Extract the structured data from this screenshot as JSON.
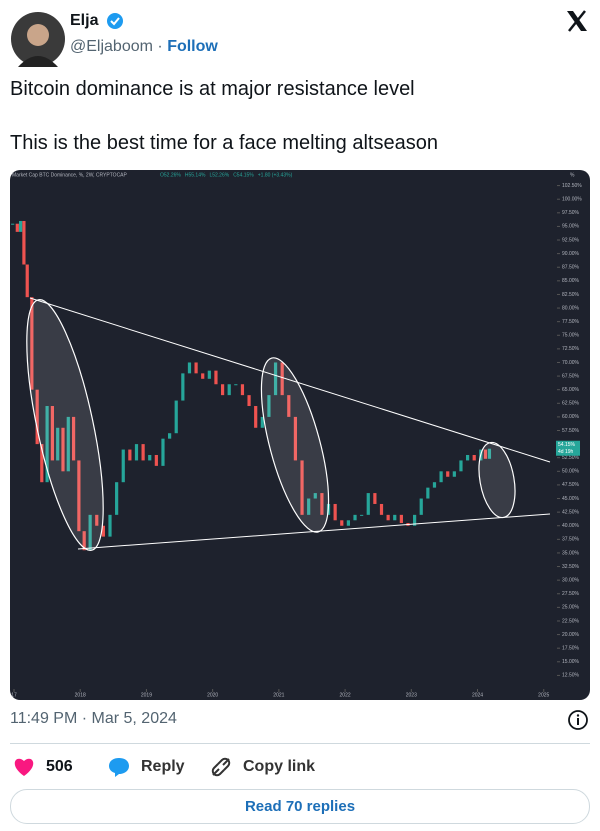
{
  "author": {
    "name": "Elja",
    "handle": "@Eljaboom",
    "separator": "·",
    "follow": "Follow"
  },
  "text": [
    "Bitcoin dominance is at major resistance level",
    "This is the best time for a face melting altseason"
  ],
  "chart_data": {
    "type": "candlestick",
    "title": "Market Cap BTC Dominance, %, 2W, CRYPTOCAP",
    "ohlc": [
      "O52.26%",
      "H55.14%",
      "L52.26%",
      "C54.15%",
      "+1.80 (+3.43%)"
    ],
    "y_unit": "%",
    "price_label": "54.15%",
    "countdown": "4d 19h",
    "up_color": "#26a69a",
    "down_color": "#ef5350",
    "x": [
      2016.98,
      2017.05,
      2017.1,
      2017.15,
      2017.2,
      2017.27,
      2017.35,
      2017.42,
      2017.5,
      2017.58,
      2017.66,
      2017.74,
      2017.82,
      2017.9,
      2017.98,
      2018.06,
      2018.15,
      2018.25,
      2018.35,
      2018.45,
      2018.55,
      2018.65,
      2018.75,
      2018.85,
      2018.95,
      2019.05,
      2019.15,
      2019.25,
      2019.35,
      2019.45,
      2019.55,
      2019.65,
      2019.75,
      2019.85,
      2019.95,
      2020.05,
      2020.15,
      2020.25,
      2020.35,
      2020.45,
      2020.55,
      2020.65,
      2020.75,
      2020.85,
      2020.95,
      2021.05,
      2021.15,
      2021.25,
      2021.35,
      2021.45,
      2021.55,
      2021.65,
      2021.75,
      2021.85,
      2021.95,
      2022.05,
      2022.15,
      2022.25,
      2022.35,
      2022.45,
      2022.55,
      2022.65,
      2022.75,
      2022.85,
      2022.95,
      2023.05,
      2023.15,
      2023.25,
      2023.35,
      2023.45,
      2023.55,
      2023.65,
      2023.75,
      2023.85,
      2023.95,
      2024.05,
      2024.12,
      2024.18
    ],
    "values": [
      95.5,
      94,
      96,
      88,
      82,
      65,
      55,
      48,
      62,
      52,
      58,
      50,
      60,
      52,
      39,
      35.5,
      42,
      40,
      38,
      42,
      48,
      54,
      52,
      55,
      52,
      53,
      51,
      56,
      57,
      63,
      68,
      70,
      68,
      67,
      68.5,
      66,
      64,
      66,
      66,
      64,
      62,
      58,
      60,
      64,
      70,
      64,
      60,
      52,
      42,
      45,
      46,
      42,
      44,
      41,
      40,
      41,
      42,
      42,
      46,
      44,
      42,
      41,
      42,
      40.5,
      40,
      42,
      45,
      47,
      48,
      50,
      49,
      50,
      52,
      53,
      52,
      54,
      52.3,
      54.15
    ],
    "xlim": [
      2016.97,
      2025.17
    ],
    "xticks": [
      {
        "value": 2017,
        "label": "17"
      },
      2018,
      2019,
      2020,
      2021,
      2022,
      2023,
      2024,
      2025
    ],
    "ylim": [
      10,
      105
    ],
    "yticks": [
      {
        "value": 12.5,
        "label": "12.50%"
      },
      {
        "value": 15,
        "label": "15.00%"
      },
      {
        "value": 17.5,
        "label": "17.50%"
      },
      {
        "value": 20,
        "label": "20.00%"
      },
      {
        "value": 22.5,
        "label": "22.50%"
      },
      {
        "value": 25,
        "label": "25.00%"
      },
      {
        "value": 27.5,
        "label": "27.50%"
      },
      {
        "value": 30,
        "label": "30.00%"
      },
      {
        "value": 32.5,
        "label": "32.50%"
      },
      {
        "value": 35,
        "label": "35.00%"
      },
      {
        "value": 37.5,
        "label": "37.50%"
      },
      {
        "value": 40,
        "label": "40.00%"
      },
      {
        "value": 42.5,
        "label": "42.50%"
      },
      {
        "value": 45,
        "label": "45.00%"
      },
      {
        "value": 47.5,
        "label": "47.50%"
      },
      {
        "value": 50,
        "label": "50.00%"
      },
      {
        "value": 52.5,
        "label": "52.50%"
      },
      {
        "value": 55,
        "label": "55.00%"
      },
      {
        "value": 57.5,
        "label": "57.50%"
      },
      {
        "value": 60,
        "label": "60.00%"
      },
      {
        "value": 62.5,
        "label": "62.50%"
      },
      {
        "value": 65,
        "label": "65.00%"
      },
      {
        "value": 67.5,
        "label": "67.50%"
      },
      {
        "value": 70,
        "label": "70.00%"
      },
      {
        "value": 72.5,
        "label": "72.50%"
      },
      {
        "value": 75,
        "label": "75.00%"
      },
      {
        "value": 77.5,
        "label": "77.50%"
      },
      {
        "value": 80,
        "label": "80.00%"
      },
      {
        "value": 82.5,
        "label": "82.50%"
      },
      {
        "value": 85,
        "label": "85.00%"
      },
      {
        "value": 87.5,
        "label": "87.50%"
      },
      {
        "value": 90,
        "label": "90.00%"
      },
      {
        "value": 92.5,
        "label": "92.50%"
      },
      {
        "value": 95,
        "label": "95.00%"
      },
      {
        "value": 97.5,
        "label": "97.50%"
      },
      {
        "value": 100,
        "label": "100.00%"
      },
      {
        "value": 102.5,
        "label": "102.50%"
      }
    ]
  },
  "timestamp": "11:49 PM · Mar 5, 2024",
  "actions": {
    "likes": "506",
    "reply": "Reply",
    "copy": "Copy link"
  },
  "read_replies": "Read 70 replies"
}
